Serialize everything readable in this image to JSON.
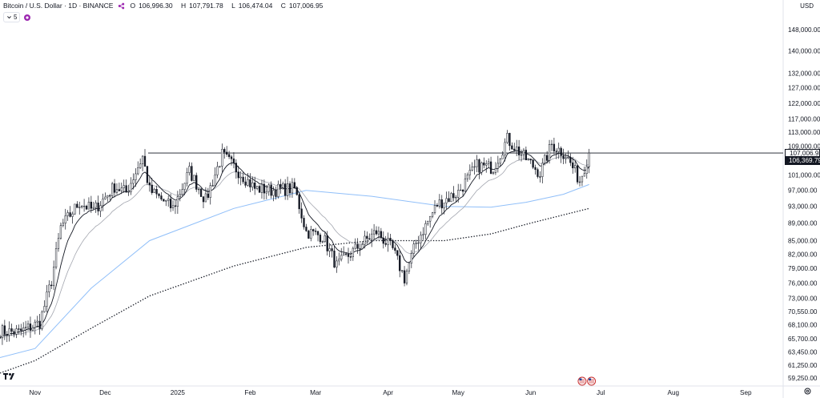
{
  "legend": {
    "title": "Bitcoin / U.S. Dollar · 1D · BINANCE",
    "ohlc": [
      {
        "k": "O",
        "v": "106,996.30"
      },
      {
        "k": "H",
        "v": "107,791.78"
      },
      {
        "k": "L",
        "v": "106,474.04"
      },
      {
        "k": "C",
        "v": "107,006.95"
      }
    ],
    "indicator_count": "5"
  },
  "currency": "USD",
  "colors": {
    "up": "#131722",
    "down": "#131722",
    "sma_slow": "#90bff9",
    "ema_fast": "#131722",
    "ema_mid": "#a3a6af",
    "sma_200": "#131722",
    "hline": "#131722",
    "last_price_bg": "#131722",
    "axis_text": "#131722"
  },
  "chart_data": {
    "type": "candlestick",
    "title": "Bitcoin / U.S. Dollar · 1D · BINANCE",
    "y_scale": "log",
    "ylim": [
      58000,
      160000
    ],
    "y_ticks": [
      "59,250.00",
      "61,250.00",
      "63,450.00",
      "65,700.00",
      "68,100.00",
      "70,550.00",
      "73,000.00",
      "76,000.00",
      "79,000.00",
      "82,000.00",
      "85,000.00",
      "89,000.00",
      "93,000.00",
      "97,000.00",
      "101,000.00",
      "109,000.00",
      "113,000.00",
      "117,000.00",
      "122,000.00",
      "127,000.00",
      "132,000.00",
      "140,000.00",
      "148,000.00"
    ],
    "x_ticks": [
      {
        "label": "Nov",
        "date": "2024-11-01"
      },
      {
        "label": "Dec",
        "date": "2024-12-01"
      },
      {
        "label": "2025",
        "date": "2025-01-01"
      },
      {
        "label": "Feb",
        "date": "2025-02-01"
      },
      {
        "label": "Mar",
        "date": "2025-03-01"
      },
      {
        "label": "Apr",
        "date": "2025-04-01"
      },
      {
        "label": "May",
        "date": "2025-05-01"
      },
      {
        "label": "Jun",
        "date": "2025-06-01"
      },
      {
        "label": "Jul",
        "date": "2025-07-01"
      },
      {
        "label": "Aug",
        "date": "2025-08-01"
      },
      {
        "label": "Sep",
        "date": "2025-09-01"
      }
    ],
    "xlim": [
      "2024-10-17",
      "2025-09-17"
    ],
    "horizontal_line": 107006.95,
    "last_price": "107,006.95",
    "last_price_secondary": "106,369.79",
    "close_path": [
      [
        "2024-10-17",
        67000
      ],
      [
        "2024-10-25",
        66800
      ],
      [
        "2024-11-03",
        68500
      ],
      [
        "2024-11-08",
        76500
      ],
      [
        "2024-11-12",
        88000
      ],
      [
        "2024-11-20",
        94000
      ],
      [
        "2024-11-26",
        92000
      ],
      [
        "2024-12-05",
        98000
      ],
      [
        "2024-12-10",
        96500
      ],
      [
        "2024-12-17",
        106000
      ],
      [
        "2024-12-20",
        97000
      ],
      [
        "2024-12-30",
        92500
      ],
      [
        "2025-01-06",
        102000
      ],
      [
        "2025-01-13",
        94500
      ],
      [
        "2025-01-20",
        106500
      ],
      [
        "2025-01-27",
        102000
      ],
      [
        "2025-02-03",
        97500
      ],
      [
        "2025-02-10",
        97000
      ],
      [
        "2025-02-20",
        97500
      ],
      [
        "2025-02-25",
        87000
      ],
      [
        "2025-03-04",
        86000
      ],
      [
        "2025-03-10",
        79500
      ],
      [
        "2025-03-20",
        84000
      ],
      [
        "2025-03-27",
        87000
      ],
      [
        "2025-04-03",
        83000
      ],
      [
        "2025-04-08",
        77000
      ],
      [
        "2025-04-13",
        84500
      ],
      [
        "2025-04-22",
        93500
      ],
      [
        "2025-05-01",
        96500
      ],
      [
        "2025-05-09",
        103500
      ],
      [
        "2025-05-16",
        103000
      ],
      [
        "2025-05-22",
        111000
      ],
      [
        "2025-05-29",
        106000
      ],
      [
        "2025-06-05",
        101500
      ],
      [
        "2025-06-10",
        109500
      ],
      [
        "2025-06-16",
        106500
      ],
      [
        "2025-06-22",
        99500
      ],
      [
        "2025-06-26",
        107000
      ]
    ],
    "series": [
      {
        "kind": "sma_slow",
        "points": [
          [
            "2024-10-17",
            62500
          ],
          [
            "2024-11-01",
            64000
          ],
          [
            "2024-11-25",
            75000
          ],
          [
            "2024-12-20",
            85000
          ],
          [
            "2025-01-25",
            92500
          ],
          [
            "2025-02-25",
            97000
          ],
          [
            "2025-03-25",
            95500
          ],
          [
            "2025-04-25",
            93000
          ],
          [
            "2025-05-15",
            92800
          ],
          [
            "2025-05-30",
            94000
          ],
          [
            "2025-06-15",
            96000
          ],
          [
            "2025-06-26",
            98500
          ]
        ]
      },
      {
        "kind": "sma_200",
        "points": [
          [
            "2024-10-17",
            60000
          ],
          [
            "2024-11-01",
            62000
          ],
          [
            "2024-11-25",
            67500
          ],
          [
            "2024-12-20",
            73500
          ],
          [
            "2025-01-25",
            79500
          ],
          [
            "2025-02-25",
            83500
          ],
          [
            "2025-03-25",
            85000
          ],
          [
            "2025-04-25",
            85000
          ],
          [
            "2025-05-15",
            86500
          ],
          [
            "2025-06-01",
            89000
          ],
          [
            "2025-06-26",
            92500
          ]
        ]
      },
      {
        "kind": "ema_fast",
        "lag": 4
      },
      {
        "kind": "ema_mid",
        "lag": 9
      }
    ],
    "markers": [
      {
        "date": "2025-06-23",
        "icon": "us-flag-icon"
      },
      {
        "date": "2025-06-27",
        "icon": "us-flag-icon"
      }
    ]
  }
}
